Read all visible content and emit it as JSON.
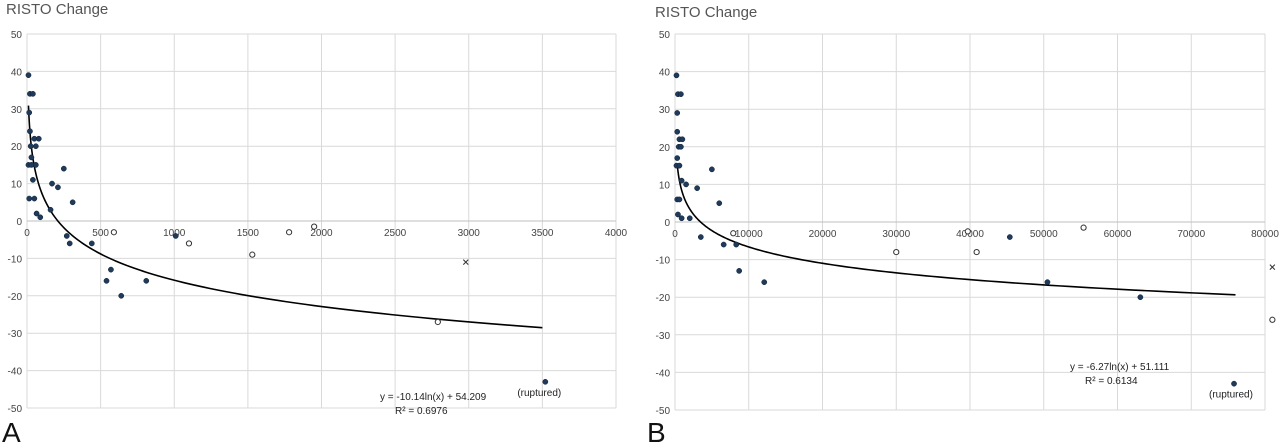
{
  "chart_data": [
    {
      "type": "scatter",
      "panel_label": "A",
      "title": "RISTO Change",
      "xlim": [
        0,
        4000
      ],
      "ylim": [
        -50,
        50
      ],
      "x_ticks": [
        0,
        500,
        1000,
        1500,
        2000,
        2500,
        3000,
        3500,
        4000
      ],
      "y_ticks": [
        50,
        40,
        30,
        20,
        10,
        0,
        -10,
        -20,
        -30,
        -40,
        -50
      ],
      "grid": true,
      "trendline": {
        "form": "log",
        "a": -10.14,
        "b": 54.209,
        "x_range": [
          10,
          3500
        ]
      },
      "equation": "y = -10.14ln(x) + 54.209",
      "r2": "R² = 0.6976",
      "series": [
        {
          "marker": "filled",
          "points": [
            [
              10,
              39
            ],
            [
              20,
              34
            ],
            [
              40,
              34
            ],
            [
              15,
              29
            ],
            [
              20,
              24
            ],
            [
              25,
              20
            ],
            [
              30,
              17
            ],
            [
              50,
              22
            ],
            [
              80,
              22
            ],
            [
              60,
              20
            ],
            [
              10,
              15
            ],
            [
              30,
              15
            ],
            [
              60,
              15
            ],
            [
              40,
              11
            ],
            [
              15,
              6
            ],
            [
              50,
              6
            ],
            [
              65,
              2
            ],
            [
              90,
              1
            ],
            [
              170,
              10
            ],
            [
              210,
              9
            ],
            [
              250,
              14
            ],
            [
              160,
              3
            ],
            [
              310,
              5
            ],
            [
              270,
              -4
            ],
            [
              290,
              -6
            ],
            [
              440,
              -6
            ],
            [
              570,
              -13
            ],
            [
              540,
              -16
            ],
            [
              640,
              -20
            ],
            [
              810,
              -16
            ],
            [
              1010,
              -4
            ],
            [
              3520,
              -43
            ]
          ]
        },
        {
          "marker": "open",
          "points": [
            [
              590,
              -3
            ],
            [
              1100,
              -6
            ],
            [
              1530,
              -9
            ],
            [
              1780,
              -3
            ],
            [
              1950,
              -1.5
            ],
            [
              2790,
              -27
            ]
          ]
        },
        {
          "marker": "x",
          "points": [
            [
              2980,
              -11
            ]
          ]
        }
      ],
      "annotations": [
        {
          "text": "(ruptured)",
          "x": 3520,
          "y": -43
        }
      ]
    },
    {
      "type": "scatter",
      "panel_label": "B",
      "title": "RISTO Change",
      "xlim": [
        0,
        80000
      ],
      "ylim": [
        -50,
        50
      ],
      "x_ticks": [
        0,
        10000,
        20000,
        30000,
        40000,
        50000,
        60000,
        70000,
        80000
      ],
      "y_ticks": [
        50,
        40,
        30,
        20,
        10,
        0,
        -10,
        -20,
        -30,
        -40,
        -50
      ],
      "grid": true,
      "trendline": {
        "form": "log",
        "a": -6.27,
        "b": 51.111,
        "x_range": [
          300,
          76000
        ]
      },
      "equation": "y = -6.27ln(x) + 51.111",
      "r2": "R² = 0.6134",
      "series": [
        {
          "marker": "filled",
          "points": [
            [
              200,
              39
            ],
            [
              400,
              34
            ],
            [
              800,
              34
            ],
            [
              300,
              29
            ],
            [
              300,
              24
            ],
            [
              600,
              22
            ],
            [
              1000,
              22
            ],
            [
              500,
              20
            ],
            [
              800,
              20
            ],
            [
              300,
              17
            ],
            [
              200,
              15
            ],
            [
              600,
              15
            ],
            [
              900,
              11
            ],
            [
              300,
              6
            ],
            [
              600,
              6
            ],
            [
              400,
              2
            ],
            [
              900,
              1
            ],
            [
              1500,
              10
            ],
            [
              2000,
              1
            ],
            [
              3000,
              9
            ],
            [
              3500,
              -4
            ],
            [
              5000,
              14
            ],
            [
              6000,
              5
            ],
            [
              6600,
              -6
            ],
            [
              8300,
              -6
            ],
            [
              8700,
              -13
            ],
            [
              12100,
              -16
            ],
            [
              45400,
              -4
            ],
            [
              50500,
              -16
            ],
            [
              63100,
              -20
            ],
            [
              75800,
              -43
            ]
          ]
        },
        {
          "marker": "open",
          "points": [
            [
              7900,
              -3
            ],
            [
              30000,
              -8
            ],
            [
              39700,
              -2.5
            ],
            [
              40900,
              -8
            ],
            [
              55400,
              -1.5
            ],
            [
              81000,
              -26
            ]
          ]
        },
        {
          "marker": "x",
          "points": [
            [
              81000,
              -12
            ]
          ]
        }
      ],
      "annotations": [
        {
          "text": "(ruptured)",
          "x": 75800,
          "y": -43
        }
      ]
    }
  ]
}
